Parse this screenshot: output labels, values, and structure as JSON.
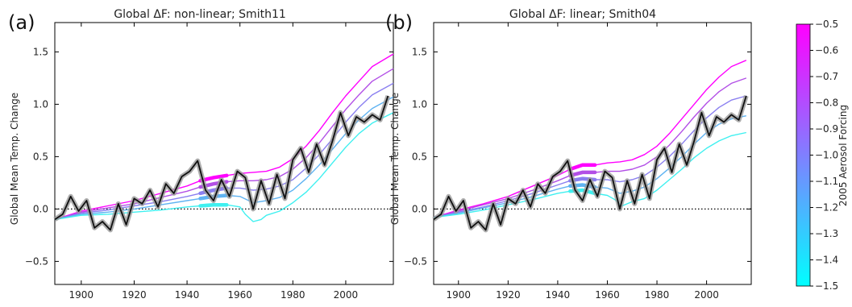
{
  "chart_data": [
    {
      "type": "line",
      "panel_label": "(a)",
      "title": "Global ΔF: non-linear; Smith11",
      "xlabel": "",
      "ylabel": "Global Mean Temp. Change",
      "xlim": [
        1890,
        2018
      ],
      "ylim": [
        -0.72,
        1.78
      ],
      "xticks": [
        1900,
        1920,
        1940,
        1960,
        1980,
        2000
      ],
      "yticks": [
        -0.5,
        0.0,
        0.5,
        1.0,
        1.5
      ],
      "ytick_labels": [
        "−0.5",
        "0.0",
        "0.5",
        "1.0",
        "1.5"
      ],
      "zero_line": true,
      "model_series": [
        {
          "aerosol_forcing": -0.5,
          "color": "#ff00ff",
          "x": [
            1890,
            1900,
            1910,
            1920,
            1930,
            1940,
            1945,
            1950,
            1955,
            1960,
            1965,
            1970,
            1975,
            1980,
            1985,
            1990,
            1995,
            2000,
            2005,
            2010,
            2018
          ],
          "y": [
            -0.1,
            -0.02,
            0.03,
            0.08,
            0.15,
            0.22,
            0.27,
            0.3,
            0.32,
            0.34,
            0.35,
            0.36,
            0.4,
            0.48,
            0.6,
            0.75,
            0.92,
            1.08,
            1.22,
            1.36,
            1.48
          ]
        },
        {
          "aerosol_forcing": -0.75,
          "color": "#b24fe6",
          "x": [
            1890,
            1900,
            1910,
            1920,
            1930,
            1940,
            1945,
            1950,
            1955,
            1960,
            1965,
            1970,
            1975,
            1980,
            1985,
            1990,
            1995,
            2000,
            2005,
            2010,
            2018
          ],
          "y": [
            -0.1,
            -0.03,
            0.01,
            0.05,
            0.11,
            0.17,
            0.21,
            0.24,
            0.26,
            0.27,
            0.27,
            0.28,
            0.31,
            0.38,
            0.49,
            0.63,
            0.79,
            0.95,
            1.09,
            1.22,
            1.34
          ]
        },
        {
          "aerosol_forcing": -1.0,
          "color": "#8a7ff0",
          "x": [
            1890,
            1900,
            1910,
            1920,
            1930,
            1940,
            1945,
            1950,
            1955,
            1960,
            1965,
            1970,
            1975,
            1980,
            1985,
            1990,
            1995,
            2000,
            2005,
            2010,
            2018
          ],
          "y": [
            -0.1,
            -0.04,
            -0.01,
            0.03,
            0.07,
            0.12,
            0.15,
            0.18,
            0.2,
            0.2,
            0.18,
            0.19,
            0.22,
            0.28,
            0.39,
            0.52,
            0.67,
            0.83,
            0.97,
            1.09,
            1.2
          ]
        },
        {
          "aerosol_forcing": -1.25,
          "color": "#5fb3f2",
          "x": [
            1890,
            1900,
            1910,
            1920,
            1930,
            1940,
            1945,
            1950,
            1955,
            1960,
            1965,
            1970,
            1975,
            1980,
            1985,
            1990,
            1995,
            2000,
            2005,
            2010,
            2018
          ],
          "y": [
            -0.1,
            -0.05,
            -0.03,
            0.0,
            0.04,
            0.08,
            0.1,
            0.12,
            0.13,
            0.12,
            0.06,
            0.08,
            0.11,
            0.18,
            0.29,
            0.42,
            0.57,
            0.72,
            0.85,
            0.96,
            1.07
          ]
        },
        {
          "aerosol_forcing": -1.5,
          "color": "#3ff0f0",
          "x": [
            1890,
            1900,
            1910,
            1920,
            1930,
            1940,
            1945,
            1950,
            1955,
            1960,
            1962,
            1965,
            1968,
            1970,
            1975,
            1980,
            1985,
            1990,
            1995,
            2000,
            2005,
            2010,
            2018
          ],
          "y": [
            -0.1,
            -0.06,
            -0.05,
            -0.03,
            -0.01,
            0.02,
            0.03,
            0.04,
            0.04,
            0.02,
            -0.05,
            -0.12,
            -0.1,
            -0.06,
            -0.02,
            0.06,
            0.16,
            0.29,
            0.44,
            0.59,
            0.72,
            0.82,
            0.92
          ]
        }
      ],
      "observations": {
        "name": "",
        "color": "#111111",
        "x": [
          1890,
          1893,
          1896,
          1899,
          1902,
          1905,
          1908,
          1911,
          1914,
          1917,
          1920,
          1923,
          1926,
          1929,
          1932,
          1935,
          1938,
          1941,
          1944,
          1947,
          1950,
          1953,
          1956,
          1959,
          1962,
          1965,
          1968,
          1971,
          1974,
          1977,
          1980,
          1983,
          1986,
          1989,
          1992,
          1995,
          1998,
          2001,
          2004,
          2007,
          2010,
          2013,
          2016
        ],
        "y": [
          -0.1,
          -0.05,
          0.12,
          -0.02,
          0.08,
          -0.18,
          -0.12,
          -0.2,
          0.05,
          -0.15,
          0.1,
          0.05,
          0.18,
          0.02,
          0.24,
          0.15,
          0.31,
          0.36,
          0.46,
          0.18,
          0.08,
          0.28,
          0.12,
          0.36,
          0.3,
          0.0,
          0.27,
          0.05,
          0.33,
          0.1,
          0.47,
          0.58,
          0.35,
          0.62,
          0.42,
          0.65,
          0.92,
          0.7,
          0.88,
          0.83,
          0.9,
          0.85,
          1.08
        ]
      }
    },
    {
      "type": "line",
      "panel_label": "(b)",
      "title": "Global ΔF: linear; Smith04",
      "xlabel": "",
      "ylabel": "Global Mean Temp. Change",
      "xlim": [
        1890,
        2018
      ],
      "ylim": [
        -0.72,
        1.78
      ],
      "xticks": [
        1900,
        1920,
        1940,
        1960,
        1980,
        2000
      ],
      "yticks": [
        -0.5,
        0.0,
        0.5,
        1.0,
        1.5
      ],
      "ytick_labels": [
        "−0.5",
        "0.0",
        "0.5",
        "1.0",
        "1.5"
      ],
      "zero_line": true,
      "model_series": [
        {
          "aerosol_forcing": -0.5,
          "color": "#ff00ff",
          "x": [
            1890,
            1900,
            1910,
            1920,
            1930,
            1940,
            1945,
            1950,
            1955,
            1960,
            1965,
            1970,
            1975,
            1980,
            1985,
            1990,
            1995,
            2000,
            2005,
            2010,
            2016
          ],
          "y": [
            -0.08,
            -0.01,
            0.05,
            0.12,
            0.22,
            0.32,
            0.38,
            0.42,
            0.42,
            0.44,
            0.45,
            0.47,
            0.52,
            0.6,
            0.72,
            0.86,
            1.0,
            1.14,
            1.26,
            1.36,
            1.42
          ]
        },
        {
          "aerosol_forcing": -0.75,
          "color": "#b24fe6",
          "x": [
            1890,
            1900,
            1910,
            1920,
            1930,
            1940,
            1945,
            1950,
            1955,
            1960,
            1965,
            1970,
            1975,
            1980,
            1985,
            1990,
            1995,
            2000,
            2005,
            2010,
            2016
          ],
          "y": [
            -0.08,
            -0.02,
            0.04,
            0.1,
            0.18,
            0.27,
            0.32,
            0.35,
            0.35,
            0.36,
            0.36,
            0.38,
            0.42,
            0.5,
            0.61,
            0.74,
            0.88,
            1.01,
            1.12,
            1.2,
            1.25
          ]
        },
        {
          "aerosol_forcing": -1.0,
          "color": "#8a7ff0",
          "x": [
            1890,
            1900,
            1910,
            1920,
            1930,
            1940,
            1945,
            1950,
            1955,
            1960,
            1965,
            1970,
            1975,
            1980,
            1985,
            1990,
            1995,
            2000,
            2005,
            2010,
            2016
          ],
          "y": [
            -0.08,
            -0.03,
            0.02,
            0.08,
            0.15,
            0.23,
            0.27,
            0.29,
            0.28,
            0.28,
            0.26,
            0.28,
            0.32,
            0.4,
            0.5,
            0.62,
            0.75,
            0.87,
            0.97,
            1.04,
            1.08
          ]
        },
        {
          "aerosol_forcing": -1.25,
          "color": "#5fb3f2",
          "x": [
            1890,
            1900,
            1910,
            1920,
            1930,
            1940,
            1945,
            1950,
            1955,
            1960,
            1965,
            1970,
            1975,
            1980,
            1985,
            1990,
            1995,
            2000,
            2005,
            2010,
            2016
          ],
          "y": [
            -0.08,
            -0.04,
            0.01,
            0.06,
            0.12,
            0.19,
            0.22,
            0.23,
            0.21,
            0.2,
            0.15,
            0.17,
            0.21,
            0.29,
            0.39,
            0.5,
            0.62,
            0.73,
            0.81,
            0.86,
            0.89
          ]
        },
        {
          "aerosol_forcing": -1.5,
          "color": "#3ff0f0",
          "x": [
            1890,
            1900,
            1910,
            1920,
            1930,
            1940,
            1945,
            1950,
            1955,
            1960,
            1963,
            1966,
            1968,
            1970,
            1975,
            1980,
            1985,
            1990,
            1995,
            2000,
            2005,
            2010,
            2016
          ],
          "y": [
            -0.08,
            -0.05,
            -0.01,
            0.04,
            0.09,
            0.15,
            0.17,
            0.18,
            0.15,
            0.13,
            0.09,
            0.03,
            0.05,
            0.07,
            0.1,
            0.18,
            0.28,
            0.38,
            0.49,
            0.58,
            0.65,
            0.7,
            0.73
          ]
        }
      ],
      "observations": {
        "name": "",
        "color": "#111111",
        "x": [
          1890,
          1893,
          1896,
          1899,
          1902,
          1905,
          1908,
          1911,
          1914,
          1917,
          1920,
          1923,
          1926,
          1929,
          1932,
          1935,
          1938,
          1941,
          1944,
          1947,
          1950,
          1953,
          1956,
          1959,
          1962,
          1965,
          1968,
          1971,
          1974,
          1977,
          1980,
          1983,
          1986,
          1989,
          1992,
          1995,
          1998,
          2001,
          2004,
          2007,
          2010,
          2013,
          2016
        ],
        "y": [
          -0.1,
          -0.05,
          0.12,
          -0.02,
          0.08,
          -0.18,
          -0.12,
          -0.2,
          0.05,
          -0.15,
          0.1,
          0.05,
          0.18,
          0.02,
          0.24,
          0.15,
          0.31,
          0.36,
          0.46,
          0.18,
          0.08,
          0.28,
          0.12,
          0.36,
          0.3,
          0.0,
          0.27,
          0.05,
          0.33,
          0.1,
          0.47,
          0.58,
          0.35,
          0.62,
          0.42,
          0.65,
          0.92,
          0.7,
          0.88,
          0.83,
          0.9,
          0.85,
          1.08
        ]
      }
    }
  ],
  "colorbar": {
    "label": "2005 Aerosol Forcing",
    "range": [
      -1.5,
      -0.5
    ],
    "ticks": [
      -0.5,
      -0.6,
      -0.7,
      -0.8,
      -0.9,
      -1.0,
      -1.1,
      -1.2,
      -1.3,
      -1.4,
      -1.5
    ],
    "tick_labels": [
      "−0.5",
      "−0.6",
      "−0.7",
      "−0.8",
      "−0.9",
      "−1.0",
      "−1.1",
      "−1.2",
      "−1.3",
      "−1.4",
      "−1.5"
    ],
    "color_top": "#ff00ff",
    "color_bottom": "#00ffff"
  }
}
